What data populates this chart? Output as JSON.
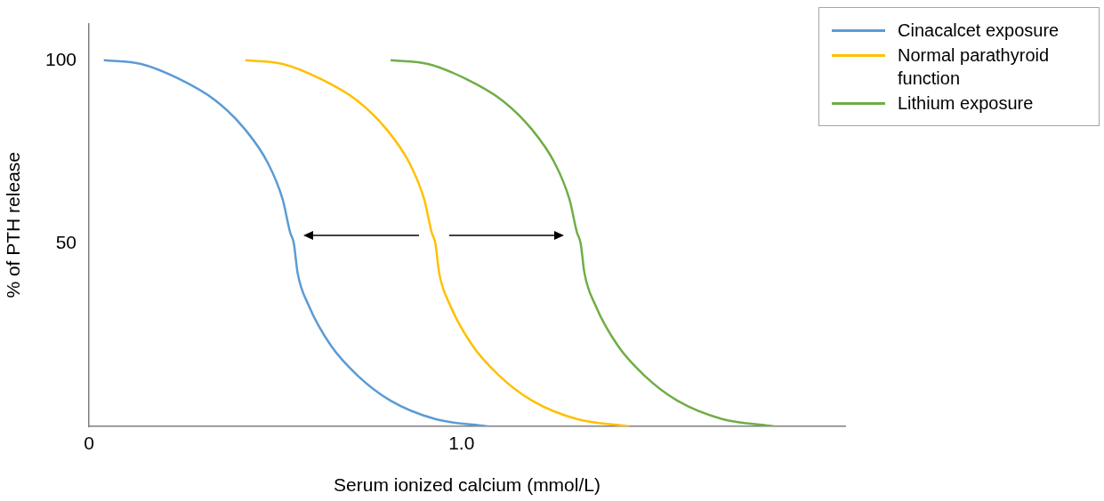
{
  "chart_data": {
    "type": "line",
    "xlabel": "Serum ionized calcium (mmol/L)",
    "ylabel": "% of PTH release",
    "xlim": [
      0,
      2.03
    ],
    "xticks": [
      {
        "value": 0,
        "label": "0"
      },
      {
        "value": 1,
        "label": "1.0"
      }
    ],
    "ylim": [
      0,
      110
    ],
    "yticks": [
      50,
      100
    ],
    "grid": false,
    "legend": "top right",
    "marker": "none",
    "line_style": "solid",
    "series": [
      {
        "name": "Cinacalcet exposure",
        "color": "#5b9bd5",
        "x": [
          0.04,
          0.14,
          0.24,
          0.34,
          0.42,
          0.48,
          0.52,
          0.54,
          0.55,
          0.56,
          0.59,
          0.65,
          0.72,
          0.81,
          0.93,
          1.07
        ],
        "values": [
          100,
          99,
          95,
          89,
          81,
          72,
          62,
          53,
          50,
          42,
          33,
          22,
          14,
          7,
          2,
          0
        ]
      },
      {
        "name": "Normal parathyroid function",
        "color": "#ffc000",
        "x": [
          0.42,
          0.52,
          0.62,
          0.72,
          0.8,
          0.86,
          0.9,
          0.92,
          0.93,
          0.94,
          0.97,
          1.03,
          1.1,
          1.19,
          1.31,
          1.45
        ],
        "values": [
          100,
          99,
          95,
          89,
          81,
          72,
          62,
          53,
          50,
          42,
          33,
          22,
          14,
          7,
          2,
          0
        ]
      },
      {
        "name": "Lithium exposure",
        "color": "#70ad47",
        "x": [
          0.81,
          0.91,
          1.01,
          1.11,
          1.19,
          1.25,
          1.29,
          1.31,
          1.32,
          1.33,
          1.36,
          1.42,
          1.49,
          1.58,
          1.7,
          1.84
        ],
        "values": [
          100,
          99,
          95,
          89,
          81,
          72,
          62,
          53,
          50,
          42,
          33,
          22,
          14,
          7,
          2,
          0
        ]
      }
    ]
  }
}
